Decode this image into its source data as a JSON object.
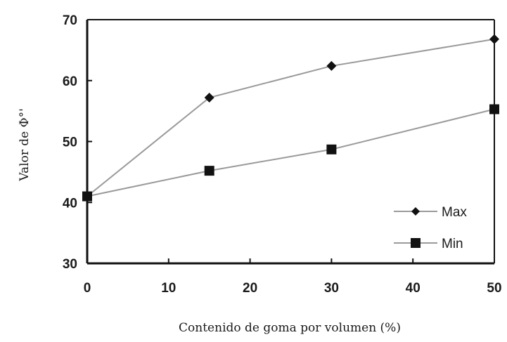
{
  "chart_data": {
    "type": "line",
    "title": "",
    "xlabel": "Contenido de goma por volumen (%)",
    "ylabel": "Valor de Φ°'",
    "x": [
      0,
      15,
      30,
      50
    ],
    "xlim": [
      0,
      50
    ],
    "ylim": [
      30,
      70
    ],
    "xticks": [
      0,
      10,
      20,
      30,
      40,
      50
    ],
    "yticks": [
      30,
      40,
      50,
      60,
      70
    ],
    "grid": false,
    "legend_position": "bottom-right",
    "series": [
      {
        "name": "Max",
        "marker": "diamond",
        "values": [
          41,
          57.2,
          62.4,
          66.8
        ]
      },
      {
        "name": "Min",
        "marker": "square",
        "values": [
          41,
          45.2,
          48.7,
          55.3
        ]
      }
    ],
    "colors": {
      "line": "#9a9a9a",
      "marker": "#111111",
      "axis": "#111111"
    }
  }
}
